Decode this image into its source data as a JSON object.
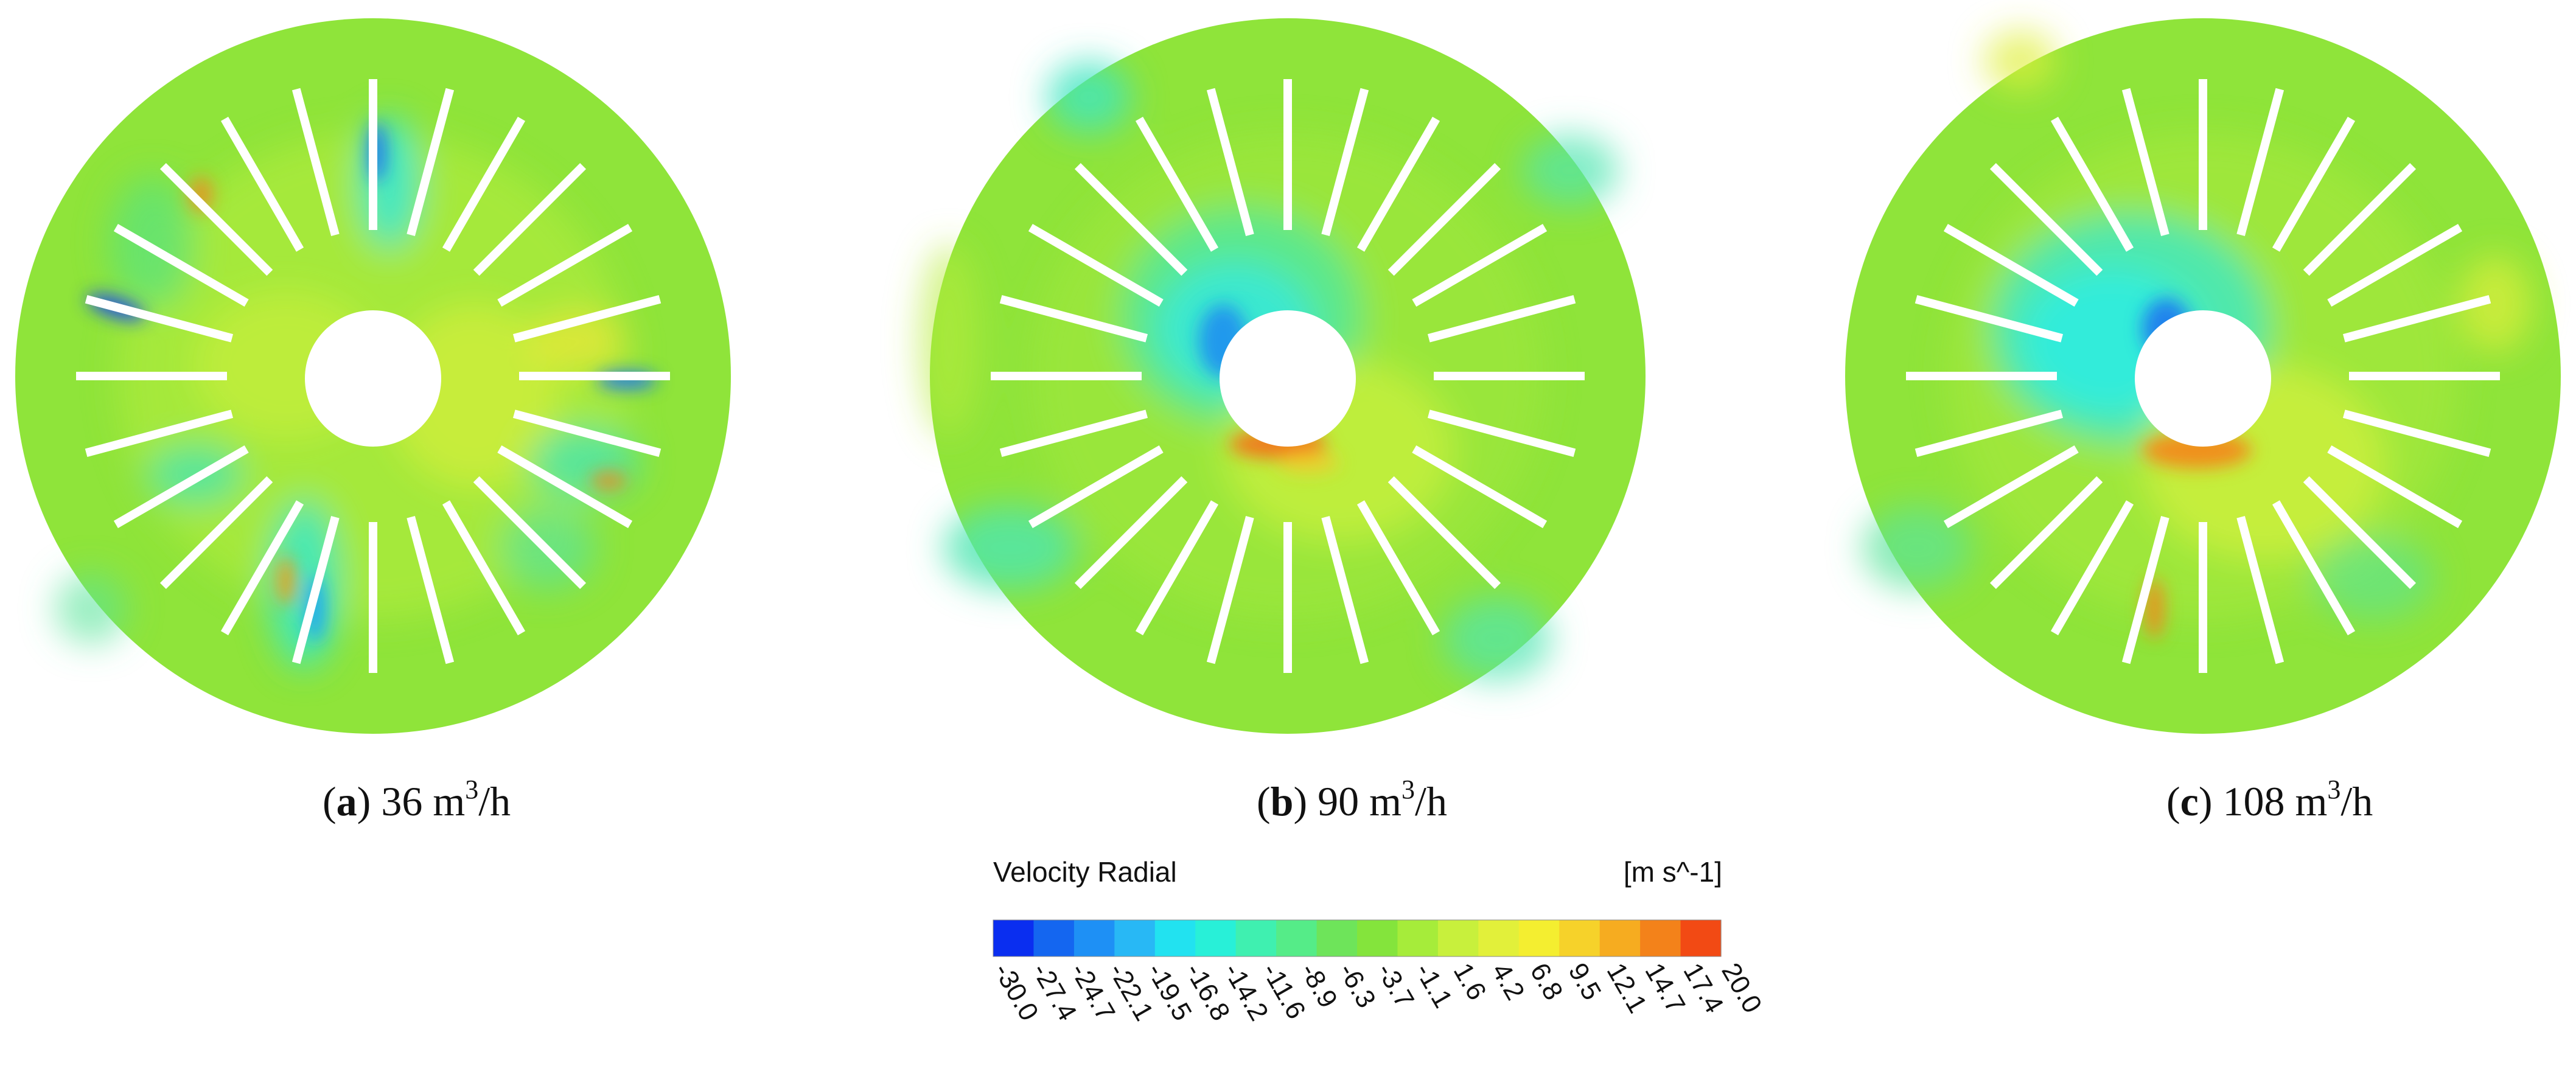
{
  "figure": {
    "panels": [
      {
        "label": "a",
        "value": "36",
        "unit_base": "m",
        "unit_exp": "3",
        "unit_tail": "/h"
      },
      {
        "label": "b",
        "value": "90",
        "unit_base": "m",
        "unit_exp": "3",
        "unit_tail": "/h"
      },
      {
        "label": "c",
        "value": "108",
        "unit_base": "m",
        "unit_exp": "3",
        "unit_tail": "/h"
      }
    ],
    "blade_count": 24
  },
  "legend": {
    "title": "Velocity Radial",
    "unit": "[m s^-1]",
    "ticks": [
      "-30.0",
      "-27.4",
      "-24.7",
      "-22.1",
      "-19.5",
      "-16.8",
      "-14.2",
      "-11.6",
      "-8.9",
      "-6.3",
      "-3.7",
      "-1.1",
      "1.6",
      "4.2",
      "6.8",
      "9.5",
      "12.1",
      "14.7",
      "17.4",
      "20.0"
    ],
    "colors": [
      "#0a2ef0",
      "#1466f0",
      "#1e90f5",
      "#28b8f5",
      "#22e2f0",
      "#28f0d8",
      "#3ff0b0",
      "#55ec88",
      "#6ee45a",
      "#84e43c",
      "#a6ec3a",
      "#c8f03c",
      "#e2f03a",
      "#f4ee30",
      "#f6d22a",
      "#f6ac20",
      "#f3821a",
      "#f24a14"
    ]
  },
  "colors": {
    "base_field": "#8fe43a",
    "blade": "#ffffff"
  }
}
